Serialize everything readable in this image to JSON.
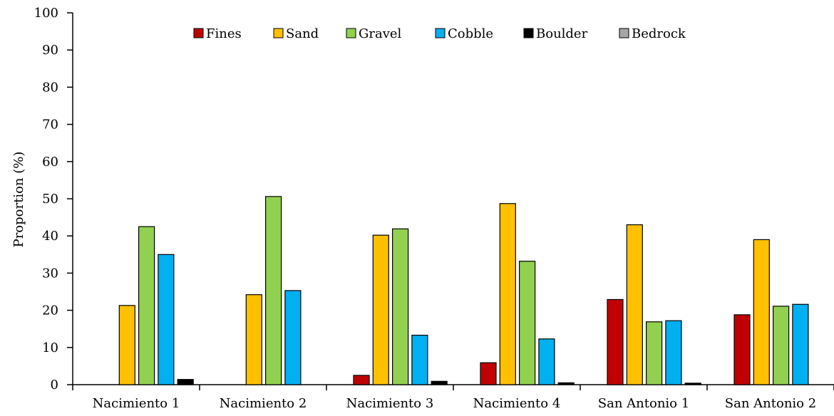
{
  "chart_data": {
    "type": "bar",
    "title": "",
    "xlabel": "",
    "ylabel": "Proportion (%)",
    "ylim": [
      0,
      100
    ],
    "yticks": [
      "0",
      "10",
      "20",
      "30",
      "40",
      "50",
      "60",
      "70",
      "80",
      "90",
      "100"
    ],
    "grid": false,
    "legend_position": "top-center",
    "categories": [
      "Nacimiento 1",
      "Nacimiento 2",
      "Nacimiento 3",
      "Nacimiento 4",
      "San Antonio 1",
      "San Antonio 2"
    ],
    "series": [
      {
        "name": "Fines",
        "color": "#c00000",
        "values": [
          0,
          0,
          2.5,
          5.9,
          22.9,
          18.8
        ]
      },
      {
        "name": "Sand",
        "color": "#ffc000",
        "values": [
          21.3,
          24.2,
          40.2,
          48.7,
          43.0,
          39.0
        ]
      },
      {
        "name": "Gravel",
        "color": "#92d050",
        "values": [
          42.5,
          50.6,
          41.9,
          33.2,
          16.9,
          21.1
        ]
      },
      {
        "name": "Cobble",
        "color": "#00b0f0",
        "values": [
          35.0,
          25.3,
          13.3,
          12.3,
          17.2,
          21.6
        ]
      },
      {
        "name": "Boulder",
        "color": "#000000",
        "values": [
          1.4,
          0,
          0.9,
          0.5,
          0.4,
          0
        ]
      },
      {
        "name": "Bedrock",
        "color": "#a6a6a6",
        "values": [
          0,
          0,
          0,
          0,
          0,
          0
        ]
      }
    ]
  }
}
